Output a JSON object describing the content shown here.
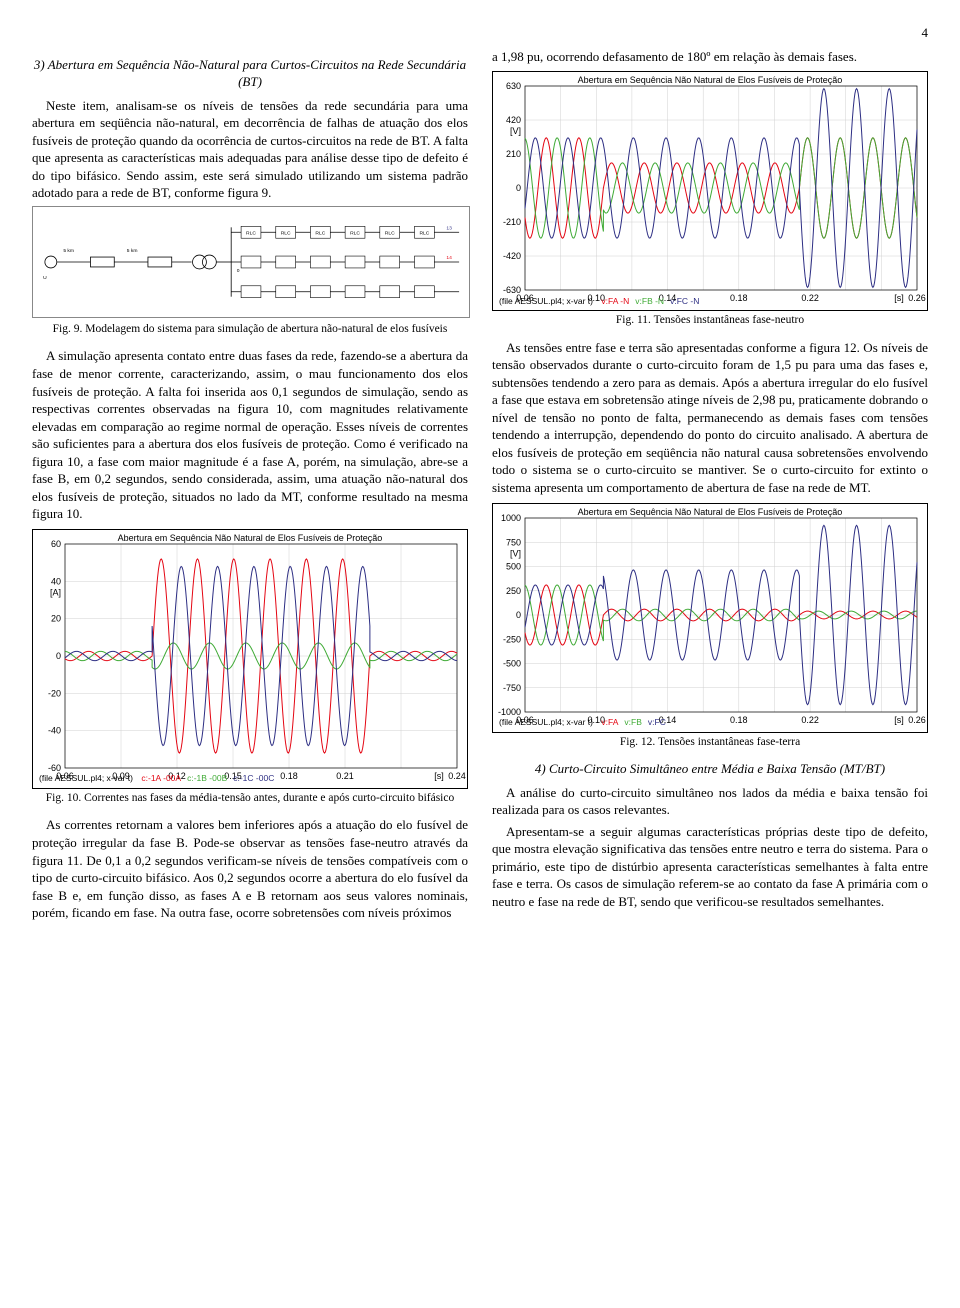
{
  "page_number": "4",
  "left": {
    "heading3": "3)  Abertura em Sequência Não-Natural para Curtos-Circuitos na Rede Secundária (BT)",
    "p1": "Neste item, analisam-se os níveis de tensões da rede secundária para uma abertura em seqüência não-natural, em decorrência de falhas de atuação dos elos fusíveis de proteção quando da ocorrência de curtos-circuitos na rede de BT. A falta que apresenta as características mais adequadas para análise desse tipo de defeito é do tipo bifásico. Sendo assim, este será simulado utilizando um sistema padrão adotado para a rede de BT, conforme figura 9.",
    "fig9_caption": "Fig. 9.  Modelagem do sistema para simulação de abertura não-natural de elos fusíveis",
    "p2": "A simulação apresenta contato entre duas fases da rede, fazendo-se a abertura da fase de menor corrente, caracterizando, assim, o mau funcionamento dos elos fusíveis de proteção. A falta foi inserida aos 0,1 segundos de simulação, sendo as respectivas correntes observadas na figura 10, com magnitudes relativamente elevadas em comparação ao regime normal de operação. Esses níveis de correntes são suficientes para a abertura dos elos fusíveis de proteção. Como é verificado na figura 10, a fase com maior magnitude é a fase A, porém, na simulação, abre-se a fase B, em 0,2 segundos, sendo considerada, assim, uma atuação não-natural dos elos fusíveis de proteção, situados no lado da MT, conforme resultado na mesma figura 10.",
    "fig10_caption": "Fig. 10.  Correntes nas fases da média-tensão antes, durante e após curto-circuito bifásico",
    "p3": "As correntes retornam a valores bem inferiores após a atuação do elo fusível de proteção irregular da fase B. Pode-se observar as tensões fase-neutro através da figura 11. De 0,1 a 0,2 segundos verificam-se níveis de tensões compatíveis com o tipo de curto-circuito bifásico. Aos 0,2 segundos ocorre a abertura do elo fusível da fase B e, em função disso, as fases A e B retornam aos seus valores nominais, porém, ficando em fase. Na outra fase, ocorre sobretensões com níveis próximos"
  },
  "right": {
    "p0": "a 1,98 pu, ocorrendo defasamento de 180º em relação às demais fases.",
    "fig11_caption": "Fig. 11.  Tensões instantâneas fase-neutro",
    "p1": "As tensões entre fase e terra são apresentadas conforme a figura 12. Os níveis de tensão observados durante o curto-circuito foram de 1,5 pu para uma das fases e, subtensões tendendo a zero para as demais. Após a abertura irregular do elo fusível a fase que estava em sobretensão atinge níveis de 2,98 pu, praticamente dobrando o nível de tensão no ponto de falta, permanecendo as demais fases com tensões tendendo a interrupção, dependendo do ponto do circuito analisado. A abertura de elos fusíveis de proteção em seqüência não natural causa sobretensões envolvendo todo o sistema se o curto-circuito se mantiver. Se o curto-circuito for extinto o sistema apresenta um comportamento de abertura de fase na rede de MT.",
    "fig12_caption": "Fig. 12.  Tensões instantâneas fase-terra",
    "heading4": "4)  Curto-Circuito Simultâneo entre Média e Baixa Tensão (MT/BT)",
    "p2": "A análise do curto-circuito simultâneo nos lados da média e baixa tensão foi realizada para os casos relevantes.",
    "p3": "Apresentam-se a seguir algumas características próprias deste tipo de defeito, que mostra elevação significativa das tensões entre neutro e terra do sistema. Para o primário, este tipo de distúrbio apresenta características semelhantes à falta entre fase e terra. Os casos de simulação referem-se ao contato da fase A primária com o neutro e fase na rede de BT, sendo que  verificou-se resultados semelhantes."
  },
  "colors": {
    "red": "#e40613",
    "green": "#3faa35",
    "blue": "#2d2e83"
  },
  "chart10": {
    "title": "Abertura em Sequência Não Natural de Elos Fusíveis de Proteção",
    "y_unit": "[A]",
    "xlim": [
      0.06,
      0.24
    ],
    "xticks": [
      "0.06",
      "0.09",
      "0.12",
      "0.15",
      "0.18",
      "0.21",
      "",
      "0.24"
    ],
    "x_unit": "[s]",
    "ylim": [
      -60,
      60
    ],
    "yticks": [
      -60,
      -40,
      -20,
      0,
      20,
      40,
      60
    ],
    "legend_prefix": "(file AESSUL.pl4; x-var t)",
    "legend": [
      {
        "label": "c:-1A  -00A",
        "color": "#e40613"
      },
      {
        "label": "c:-1B  -00B",
        "color": "#3faa35"
      },
      {
        "label": "c:-1C  -00C",
        "color": "#2d2e83"
      }
    ],
    "series": [
      {
        "color": "#e40613",
        "freq_hz": 60,
        "segments": [
          {
            "t0": 0.06,
            "t1": 0.1,
            "amp": 2.5,
            "phase": 0
          },
          {
            "t0": 0.1,
            "t1": 0.2,
            "amp": 52,
            "phase": 0
          },
          {
            "t0": 0.2,
            "t1": 0.24,
            "amp": 2.5,
            "phase": 0
          }
        ]
      },
      {
        "color": "#3faa35",
        "freq_hz": 60,
        "segments": [
          {
            "t0": 0.06,
            "t1": 0.1,
            "amp": 2.5,
            "phase": -2.094
          },
          {
            "t0": 0.1,
            "t1": 0.2,
            "amp": 7,
            "phase": -2.094
          },
          {
            "t0": 0.2,
            "t1": 0.24,
            "amp": 2.5,
            "phase": -2.094
          }
        ]
      },
      {
        "color": "#2d2e83",
        "freq_hz": 60,
        "segments": [
          {
            "t0": 0.06,
            "t1": 0.1,
            "amp": 2.5,
            "phase": 2.094
          },
          {
            "t0": 0.1,
            "t1": 0.2,
            "amp": 48,
            "phase": 2.8
          },
          {
            "t0": 0.2,
            "t1": 0.24,
            "amp": 2.5,
            "phase": 2.094
          }
        ]
      }
    ]
  },
  "chart11": {
    "title": "Abertura em Sequência Não Natural de Elos Fusíveis de Proteção",
    "y_unit": "[V]",
    "xlim": [
      0.06,
      0.26
    ],
    "xticks": [
      "0.06",
      "",
      "0.10",
      "",
      "0.14",
      "",
      "0.18",
      "",
      "0.22",
      "",
      "",
      "0.26"
    ],
    "x_unit": "[s]",
    "ylim": [
      -630,
      630
    ],
    "yticks": [
      -630,
      -420,
      -210,
      0,
      210,
      420,
      630
    ],
    "legend_prefix": "(file AESSUL.pl4; x-var t)",
    "legend": [
      {
        "label": "v:FA   -N",
        "color": "#e40613"
      },
      {
        "label": "v:FB   -N",
        "color": "#3faa35"
      },
      {
        "label": "v:FC   -N",
        "color": "#2d2e83"
      }
    ],
    "series": [
      {
        "color": "#e40613",
        "freq_hz": 60,
        "segments": [
          {
            "t0": 0.06,
            "t1": 0.1,
            "amp": 310,
            "phase": 0
          },
          {
            "t0": 0.1,
            "t1": 0.2,
            "amp": 155,
            "phase": 0
          },
          {
            "t0": 0.2,
            "t1": 0.26,
            "amp": 310,
            "phase": 0
          }
        ]
      },
      {
        "color": "#3faa35",
        "freq_hz": 60,
        "segments": [
          {
            "t0": 0.06,
            "t1": 0.1,
            "amp": 310,
            "phase": -2.094
          },
          {
            "t0": 0.1,
            "t1": 0.2,
            "amp": 155,
            "phase": -2.094
          },
          {
            "t0": 0.2,
            "t1": 0.26,
            "amp": 310,
            "phase": 0
          }
        ]
      },
      {
        "color": "#2d2e83",
        "freq_hz": 60,
        "segments": [
          {
            "t0": 0.06,
            "t1": 0.1,
            "amp": 310,
            "phase": 2.094
          },
          {
            "t0": 0.1,
            "t1": 0.2,
            "amp": 310,
            "phase": 2.094
          },
          {
            "t0": 0.2,
            "t1": 0.26,
            "amp": 614,
            "phase": 3.1416
          }
        ]
      }
    ]
  },
  "chart12": {
    "title": "Abertura em Sequência Não Natural de Elos Fusíveis de Proteção",
    "y_unit": "[V]",
    "xlim": [
      0.06,
      0.26
    ],
    "xticks": [
      "0.06",
      "",
      "0.10",
      "",
      "0.14",
      "",
      "0.18",
      "",
      "0.22",
      "",
      "",
      "0.26"
    ],
    "x_unit": "[s]",
    "ylim": [
      -1000,
      1000
    ],
    "yticks": [
      -1000,
      -750,
      -500,
      -250,
      0,
      250,
      500,
      750,
      1000
    ],
    "legend_prefix": "(file AESSUL.pl4; x-var t)",
    "legend": [
      {
        "label": "v:FA",
        "color": "#e40613"
      },
      {
        "label": "v:FB",
        "color": "#3faa35"
      },
      {
        "label": "v:FC",
        "color": "#2d2e83"
      }
    ],
    "series": [
      {
        "color": "#e40613",
        "freq_hz": 60,
        "segments": [
          {
            "t0": 0.06,
            "t1": 0.1,
            "amp": 310,
            "phase": 0
          },
          {
            "t0": 0.1,
            "t1": 0.2,
            "amp": 60,
            "phase": 0
          },
          {
            "t0": 0.2,
            "t1": 0.26,
            "amp": 40,
            "phase": 0
          }
        ]
      },
      {
        "color": "#3faa35",
        "freq_hz": 60,
        "segments": [
          {
            "t0": 0.06,
            "t1": 0.1,
            "amp": 310,
            "phase": -2.094
          },
          {
            "t0": 0.1,
            "t1": 0.2,
            "amp": 60,
            "phase": -2.094
          },
          {
            "t0": 0.2,
            "t1": 0.26,
            "amp": 40,
            "phase": -2.094
          }
        ]
      },
      {
        "color": "#2d2e83",
        "freq_hz": 60,
        "segments": [
          {
            "t0": 0.06,
            "t1": 0.1,
            "amp": 310,
            "phase": 2.094
          },
          {
            "t0": 0.1,
            "t1": 0.2,
            "amp": 465,
            "phase": 2.094
          },
          {
            "t0": 0.2,
            "t1": 0.26,
            "amp": 924,
            "phase": 3.1416
          }
        ]
      }
    ]
  }
}
